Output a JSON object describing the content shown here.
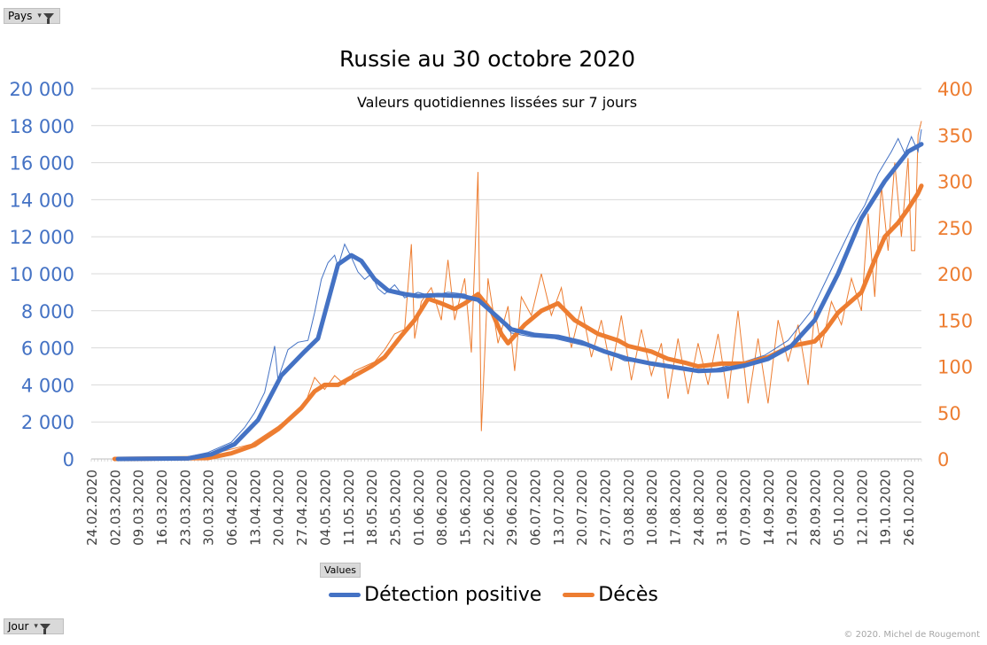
{
  "filters": {
    "pays_label": "Pays",
    "jour_label": "Jour",
    "values_label": "Values"
  },
  "copyright": "© 2020.  Michel de Rougemont",
  "colors": {
    "positive": "#4472c4",
    "deaths": "#ed7d31"
  },
  "chart_data": {
    "type": "line",
    "title": "Russie au 30 octobre 2020",
    "subtitle": "Valeurs quotidiennes lissées sur 7 jours",
    "x_start": "24.02.2020",
    "x_end": "30.10.2020",
    "x_ticks": [
      "24.02.2020",
      "02.03.2020",
      "09.03.2020",
      "16.03.2020",
      "23.03.2020",
      "30.03.2020",
      "06.04.2020",
      "13.04.2020",
      "20.04.2020",
      "27.04.2020",
      "04.05.2020",
      "11.05.2020",
      "18.05.2020",
      "25.05.2020",
      "01.06.2020",
      "08.06.2020",
      "15.06.2020",
      "22.06.2020",
      "29.06.2020",
      "06.07.2020",
      "13.07.2020",
      "20.07.2020",
      "27.07.2020",
      "03.08.2020",
      "10.08.2020",
      "17.08.2020",
      "24.08.2020",
      "31.08.2020",
      "07.09.2020",
      "14.09.2020",
      "21.09.2020",
      "28.09.2020",
      "05.10.2020",
      "12.10.2020",
      "19.10.2020",
      "26.10.2020"
    ],
    "y_left": {
      "min": 0,
      "max": 20000,
      "ticks": [
        0,
        2000,
        4000,
        6000,
        8000,
        10000,
        12000,
        14000,
        16000,
        18000,
        20000
      ],
      "tick_labels": [
        "0",
        "2 000",
        "4 000",
        "6 000",
        "8 000",
        "10 000",
        "12 000",
        "14 000",
        "16 000",
        "18 000",
        "20 000"
      ]
    },
    "y_right": {
      "min": 0,
      "max": 400,
      "ticks": [
        0,
        50,
        100,
        150,
        200,
        250,
        300,
        350,
        400
      ],
      "tick_labels": [
        "0",
        "50",
        "100",
        "150",
        "200",
        "250",
        "300",
        "350",
        "400"
      ]
    },
    "series": [
      {
        "name": "Détection positive",
        "axis": "left",
        "smoothed": [
          [
            "03.03.2020",
            0
          ],
          [
            "24.03.2020",
            30
          ],
          [
            "31.03.2020",
            250
          ],
          [
            "07.04.2020",
            800
          ],
          [
            "14.04.2020",
            2100
          ],
          [
            "21.04.2020",
            4500
          ],
          [
            "28.04.2020",
            5800
          ],
          [
            "02.05.2020",
            6500
          ],
          [
            "05.05.2020",
            8500
          ],
          [
            "08.05.2020",
            10500
          ],
          [
            "12.05.2020",
            11000
          ],
          [
            "15.05.2020",
            10700
          ],
          [
            "19.05.2020",
            9700
          ],
          [
            "23.05.2020",
            9100
          ],
          [
            "28.05.2020",
            8900
          ],
          [
            "01.06.2020",
            8800
          ],
          [
            "07.06.2020",
            8850
          ],
          [
            "14.06.2020",
            8800
          ],
          [
            "19.06.2020",
            8600
          ],
          [
            "24.06.2020",
            7800
          ],
          [
            "29.06.2020",
            7000
          ],
          [
            "06.07.2020",
            6700
          ],
          [
            "13.07.2020",
            6600
          ],
          [
            "20.07.2020",
            6300
          ],
          [
            "27.07.2020",
            5800
          ],
          [
            "03.08.2020",
            5400
          ],
          [
            "10.08.2020",
            5150
          ],
          [
            "17.08.2020",
            4950
          ],
          [
            "24.08.2020",
            4750
          ],
          [
            "31.08.2020",
            4800
          ],
          [
            "07.09.2020",
            5050
          ],
          [
            "14.09.2020",
            5400
          ],
          [
            "21.09.2020",
            6100
          ],
          [
            "28.09.2020",
            7500
          ],
          [
            "05.10.2020",
            10000
          ],
          [
            "12.10.2020",
            13000
          ],
          [
            "19.10.2020",
            15000
          ],
          [
            "26.10.2020",
            16600
          ],
          [
            "30.10.2020",
            17000
          ]
        ],
        "daily": [
          [
            "23.03.2020",
            80
          ],
          [
            "30.03.2020",
            350
          ],
          [
            "06.04.2020",
            900
          ],
          [
            "10.04.2020",
            1700
          ],
          [
            "13.04.2020",
            2500
          ],
          [
            "16.04.2020",
            3600
          ],
          [
            "19.04.2020",
            6100
          ],
          [
            "20.04.2020",
            4300
          ],
          [
            "23.04.2020",
            5900
          ],
          [
            "26.04.2020",
            6300
          ],
          [
            "29.04.2020",
            6400
          ],
          [
            "01.05.2020",
            7900
          ],
          [
            "03.05.2020",
            9700
          ],
          [
            "05.05.2020",
            10600
          ],
          [
            "07.05.2020",
            11000
          ],
          [
            "08.05.2020",
            10400
          ],
          [
            "10.05.2020",
            11600
          ],
          [
            "12.05.2020",
            10900
          ],
          [
            "14.05.2020",
            10100
          ],
          [
            "16.05.2020",
            9700
          ],
          [
            "18.05.2020",
            10000
          ],
          [
            "20.05.2020",
            9200
          ],
          [
            "22.05.2020",
            8900
          ],
          [
            "25.05.2020",
            9400
          ],
          [
            "28.05.2020",
            8700
          ],
          [
            "01.06.2020",
            9000
          ],
          [
            "05.06.2020",
            8800
          ],
          [
            "10.06.2020",
            9000
          ],
          [
            "15.06.2020",
            8900
          ],
          [
            "20.06.2020",
            8400
          ],
          [
            "25.06.2020",
            7600
          ],
          [
            "29.06.2020",
            6800
          ],
          [
            "05.07.2020",
            6600
          ],
          [
            "12.07.2020",
            6500
          ],
          [
            "19.07.2020",
            6200
          ],
          [
            "26.07.2020",
            5900
          ],
          [
            "02.08.2020",
            5300
          ],
          [
            "09.08.2020",
            5200
          ],
          [
            "16.08.2020",
            4900
          ],
          [
            "23.08.2020",
            4700
          ],
          [
            "30.08.2020",
            4900
          ],
          [
            "06.09.2020",
            5200
          ],
          [
            "13.09.2020",
            5600
          ],
          [
            "20.09.2020",
            6400
          ],
          [
            "27.09.2020",
            8000
          ],
          [
            "01.10.2020",
            9500
          ],
          [
            "05.10.2020",
            11000
          ],
          [
            "09.10.2020",
            12500
          ],
          [
            "13.10.2020",
            13700
          ],
          [
            "17.10.2020",
            15400
          ],
          [
            "21.10.2020",
            16600
          ],
          [
            "23.10.2020",
            17300
          ],
          [
            "25.10.2020",
            16500
          ],
          [
            "27.10.2020",
            17400
          ],
          [
            "29.10.2020",
            16600
          ],
          [
            "30.10.2020",
            17800
          ]
        ]
      },
      {
        "name": "Décès",
        "axis": "right",
        "smoothed": [
          [
            "02.03.2020",
            0
          ],
          [
            "30.03.2020",
            1
          ],
          [
            "06.04.2020",
            6
          ],
          [
            "13.04.2020",
            15
          ],
          [
            "20.04.2020",
            32
          ],
          [
            "27.04.2020",
            55
          ],
          [
            "01.05.2020",
            73
          ],
          [
            "04.05.2020",
            80
          ],
          [
            "08.05.2020",
            80
          ],
          [
            "11.05.2020",
            86
          ],
          [
            "18.05.2020",
            100
          ],
          [
            "22.05.2020",
            110
          ],
          [
            "27.05.2020",
            133
          ],
          [
            "31.05.2020",
            150
          ],
          [
            "04.06.2020",
            173
          ],
          [
            "08.06.2020",
            168
          ],
          [
            "12.06.2020",
            162
          ],
          [
            "15.06.2020",
            168
          ],
          [
            "19.06.2020",
            178
          ],
          [
            "23.06.2020",
            160
          ],
          [
            "26.06.2020",
            135
          ],
          [
            "28.06.2020",
            125
          ],
          [
            "03.07.2020",
            145
          ],
          [
            "08.07.2020",
            160
          ],
          [
            "13.07.2020",
            168
          ],
          [
            "18.07.2020",
            150
          ],
          [
            "25.07.2020",
            135
          ],
          [
            "31.07.2020",
            128
          ],
          [
            "03.08.2020",
            122
          ],
          [
            "10.08.2020",
            116
          ],
          [
            "15.08.2020",
            108
          ],
          [
            "20.08.2020",
            104
          ],
          [
            "24.08.2020",
            100
          ],
          [
            "31.08.2020",
            103
          ],
          [
            "07.09.2020",
            103
          ],
          [
            "14.09.2020",
            110
          ],
          [
            "21.09.2020",
            122
          ],
          [
            "28.09.2020",
            127
          ],
          [
            "01.10.2020",
            138
          ],
          [
            "05.10.2020",
            158
          ],
          [
            "12.10.2020",
            180
          ],
          [
            "16.10.2020",
            215
          ],
          [
            "19.10.2020",
            240
          ],
          [
            "23.10.2020",
            255
          ],
          [
            "26.10.2020",
            270
          ],
          [
            "29.10.2020",
            287
          ],
          [
            "30.10.2020",
            295
          ]
        ],
        "daily": [
          [
            "01.04.2020",
            6
          ],
          [
            "12.04.2020",
            16
          ],
          [
            "20.04.2020",
            35
          ],
          [
            "28.04.2020",
            58
          ],
          [
            "01.05.2020",
            88
          ],
          [
            "04.05.2020",
            75
          ],
          [
            "07.05.2020",
            90
          ],
          [
            "10.05.2020",
            80
          ],
          [
            "13.05.2020",
            95
          ],
          [
            "16.05.2020",
            100
          ],
          [
            "19.05.2020",
            105
          ],
          [
            "22.05.2020",
            118
          ],
          [
            "25.05.2020",
            135
          ],
          [
            "28.05.2020",
            140
          ],
          [
            "30.05.2020",
            232
          ],
          [
            "31.05.2020",
            130
          ],
          [
            "02.06.2020",
            170
          ],
          [
            "05.06.2020",
            185
          ],
          [
            "08.06.2020",
            150
          ],
          [
            "10.06.2020",
            215
          ],
          [
            "12.06.2020",
            150
          ],
          [
            "15.06.2020",
            195
          ],
          [
            "17.06.2020",
            115
          ],
          [
            "19.06.2020",
            310
          ],
          [
            "20.06.2020",
            30
          ],
          [
            "22.06.2020",
            195
          ],
          [
            "25.06.2020",
            125
          ],
          [
            "28.06.2020",
            165
          ],
          [
            "30.06.2020",
            95
          ],
          [
            "02.07.2020",
            175
          ],
          [
            "05.07.2020",
            155
          ],
          [
            "08.07.2020",
            200
          ],
          [
            "11.07.2020",
            155
          ],
          [
            "14.07.2020",
            185
          ],
          [
            "17.07.2020",
            120
          ],
          [
            "20.07.2020",
            165
          ],
          [
            "23.07.2020",
            110
          ],
          [
            "26.07.2020",
            150
          ],
          [
            "29.07.2020",
            95
          ],
          [
            "01.08.2020",
            155
          ],
          [
            "04.08.2020",
            85
          ],
          [
            "07.08.2020",
            140
          ],
          [
            "10.08.2020",
            90
          ],
          [
            "13.08.2020",
            125
          ],
          [
            "15.08.2020",
            65
          ],
          [
            "18.08.2020",
            130
          ],
          [
            "21.08.2020",
            70
          ],
          [
            "24.08.2020",
            125
          ],
          [
            "27.08.2020",
            80
          ],
          [
            "30.08.2020",
            135
          ],
          [
            "02.09.2020",
            65
          ],
          [
            "05.09.2020",
            160
          ],
          [
            "08.09.2020",
            60
          ],
          [
            "11.09.2020",
            130
          ],
          [
            "14.09.2020",
            60
          ],
          [
            "17.09.2020",
            150
          ],
          [
            "20.09.2020",
            105
          ],
          [
            "23.09.2020",
            145
          ],
          [
            "26.09.2020",
            80
          ],
          [
            "28.09.2020",
            160
          ],
          [
            "30.09.2020",
            120
          ],
          [
            "03.10.2020",
            170
          ],
          [
            "06.10.2020",
            145
          ],
          [
            "09.10.2020",
            195
          ],
          [
            "12.10.2020",
            160
          ],
          [
            "14.10.2020",
            265
          ],
          [
            "16.10.2020",
            175
          ],
          [
            "18.10.2020",
            295
          ],
          [
            "20.10.2020",
            225
          ],
          [
            "22.10.2020",
            320
          ],
          [
            "24.10.2020",
            240
          ],
          [
            "26.10.2020",
            325
          ],
          [
            "27.10.2020",
            225
          ],
          [
            "28.10.2020",
            225
          ],
          [
            "29.10.2020",
            350
          ],
          [
            "30.10.2020",
            365
          ]
        ]
      }
    ],
    "grid": true,
    "legend_position": "bottom"
  }
}
